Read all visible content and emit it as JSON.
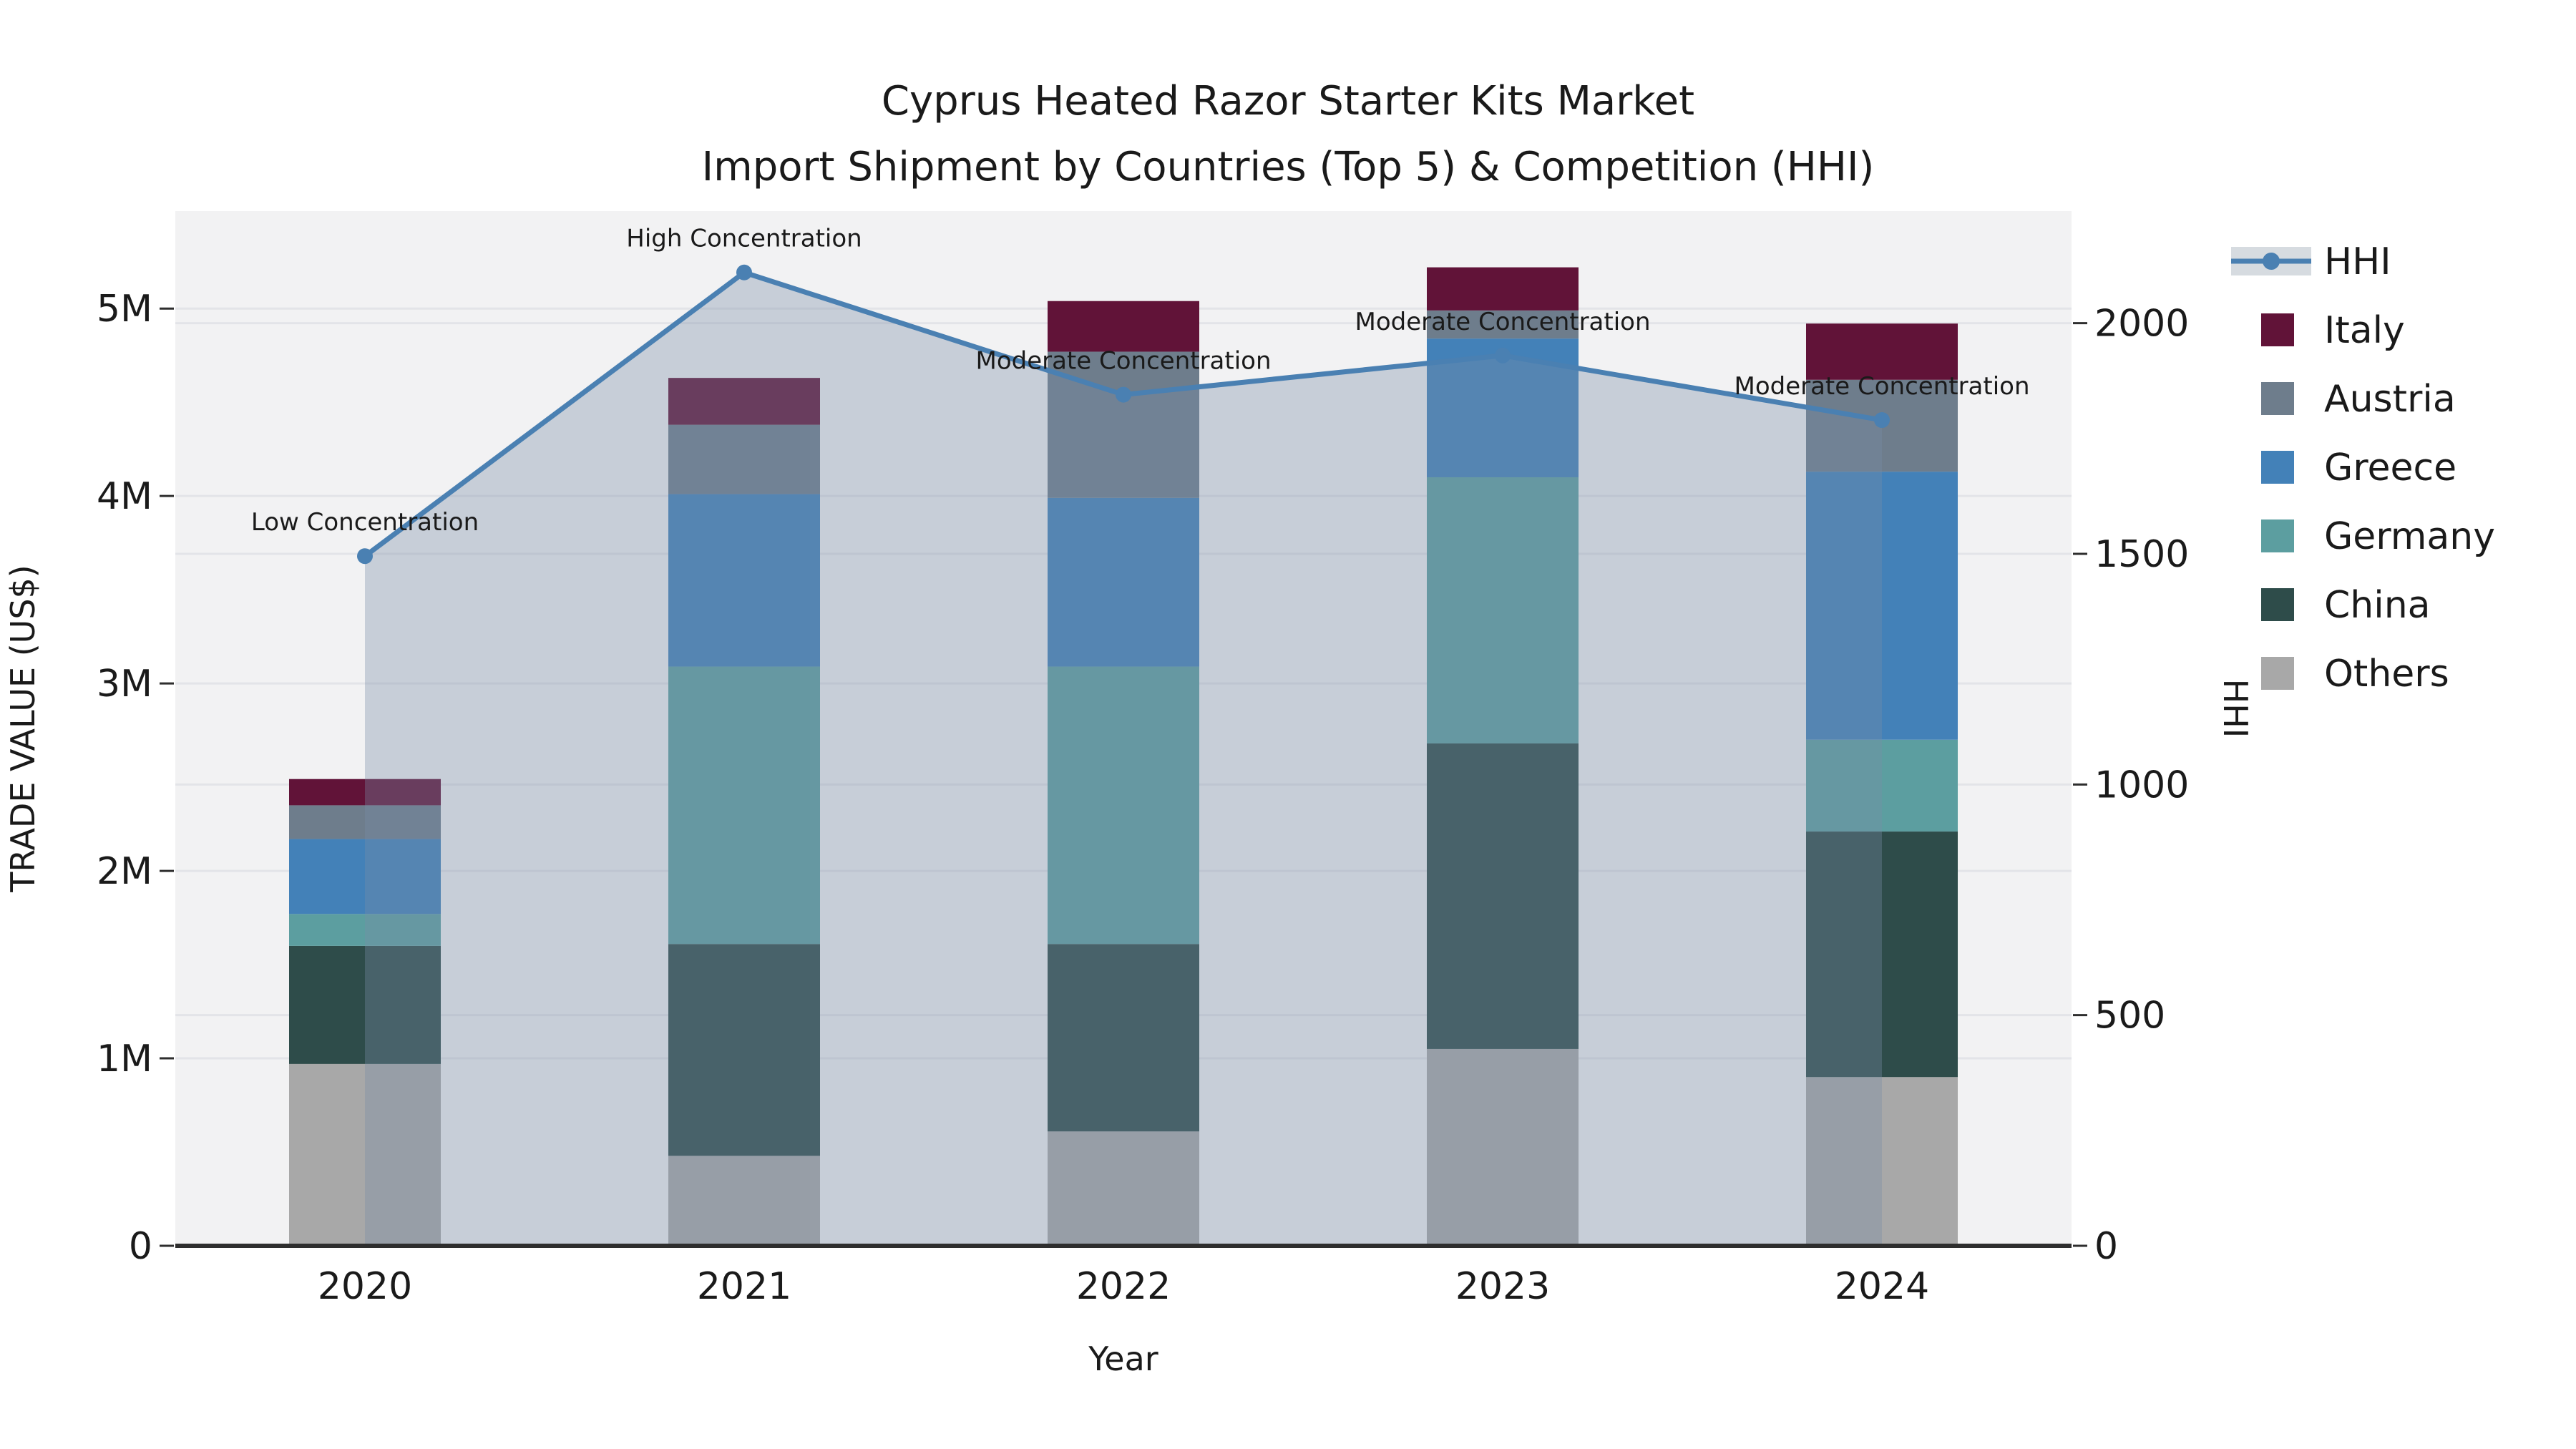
{
  "title": {
    "line1": "Cyprus Heated Razor Starter Kits Market",
    "line2": "Import Shipment by Countries (Top 5) & Competition (HHI)"
  },
  "chart_data": {
    "type": "bar",
    "subtype": "stacked-bars-with-line-overlay",
    "categories": [
      "2020",
      "2021",
      "2022",
      "2023",
      "2024"
    ],
    "unit": "million US$",
    "series": [
      {
        "name": "Others",
        "color": "#a8a8a8",
        "values": [
          0.97,
          0.48,
          0.61,
          1.05,
          0.9
        ]
      },
      {
        "name": "China",
        "color": "#2e4c4a",
        "values": [
          0.63,
          1.13,
          1.0,
          1.63,
          1.31
        ]
      },
      {
        "name": "Germany",
        "color": "#5c9ea0",
        "values": [
          0.17,
          1.48,
          1.48,
          1.42,
          0.49
        ]
      },
      {
        "name": "Greece",
        "color": "#4381b8",
        "values": [
          0.4,
          0.92,
          0.9,
          0.74,
          1.43
        ]
      },
      {
        "name": "Austria",
        "color": "#6e7d8c",
        "values": [
          0.18,
          0.37,
          0.78,
          0.15,
          0.49
        ]
      },
      {
        "name": "Italy",
        "color": "#611338",
        "values": [
          0.14,
          0.25,
          0.27,
          0.23,
          0.3
        ]
      }
    ],
    "line_series": {
      "name": "HHI",
      "color": "#4a80b2",
      "area_fill": "rgba(120,140,165,0.35)",
      "values": [
        1495,
        2110,
        1845,
        1930,
        1790
      ]
    },
    "annotations": [
      {
        "year": "2020",
        "label": "Low Concentration"
      },
      {
        "year": "2021",
        "label": "High Concentration"
      },
      {
        "year": "2022",
        "label": "Moderate Concentration"
      },
      {
        "year": "2023",
        "label": "Moderate Concentration"
      },
      {
        "year": "2024",
        "label": "Moderate Concentration"
      }
    ],
    "axes": {
      "xlabel": "Year",
      "ylabel_left": "TRADE VALUE (US$)",
      "ylabel_right": "HHI",
      "yticks_left_labels": [
        "0",
        "1M",
        "2M",
        "3M",
        "4M",
        "5M"
      ],
      "yticks_left_values": [
        0,
        1,
        2,
        3,
        4,
        5
      ],
      "ylim_left": [
        0,
        5.52
      ],
      "yticks_right_labels": [
        "0",
        "500",
        "1000",
        "1500",
        "2000"
      ],
      "yticks_right_values": [
        0,
        500,
        1000,
        1500,
        2000
      ],
      "ylim_right": [
        0,
        2243
      ],
      "grid": true
    },
    "legend": {
      "position": "right",
      "entries": [
        "HHI",
        "Italy",
        "Austria",
        "Greece",
        "Germany",
        "China",
        "Others"
      ]
    }
  },
  "colors": {
    "figure_bg": "#ffffff",
    "plot_bg": "#f2f2f3",
    "grid": "#e3e4e8",
    "spine": "#2e2e2e",
    "text": "#1a1a1a",
    "legend_area_swatch": "#d6dbe0"
  }
}
